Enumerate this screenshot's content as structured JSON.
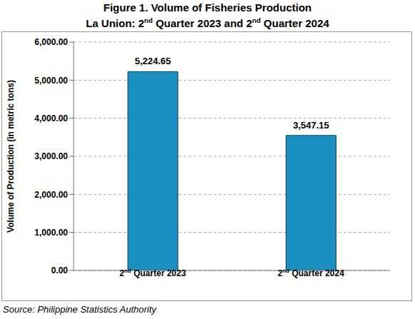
{
  "chart_data": {
    "type": "bar",
    "title": "Figure 1.  Volume of Fisheries Production",
    "subtitle": "La Union: 2nd Quarter 2023 and 2nd Quarter 2024",
    "y_label": "Volume of Production (in metric tons)",
    "source": "Source: Philippine Statistics Authority",
    "categories": [
      "2nd Quarter 2023",
      "2nd Quarter 2024"
    ],
    "values": [
      5224.65,
      3547.15
    ],
    "value_labels": [
      "5,224.65",
      "3,547.15"
    ],
    "color": "#1b8fbf",
    "ylim": [
      0,
      6000
    ],
    "yticks": [
      {
        "value": 0,
        "label": "0.00"
      },
      {
        "value": 1000,
        "label": "1,000.00"
      },
      {
        "value": 2000,
        "label": "2,000.00"
      },
      {
        "value": 3000,
        "label": "3,000.00"
      },
      {
        "value": 4000,
        "label": "4,000.00"
      },
      {
        "value": 5000,
        "label": "5,000.00"
      },
      {
        "value": 6000,
        "label": "6,000.00"
      }
    ],
    "grid": true,
    "data_labels": true
  }
}
